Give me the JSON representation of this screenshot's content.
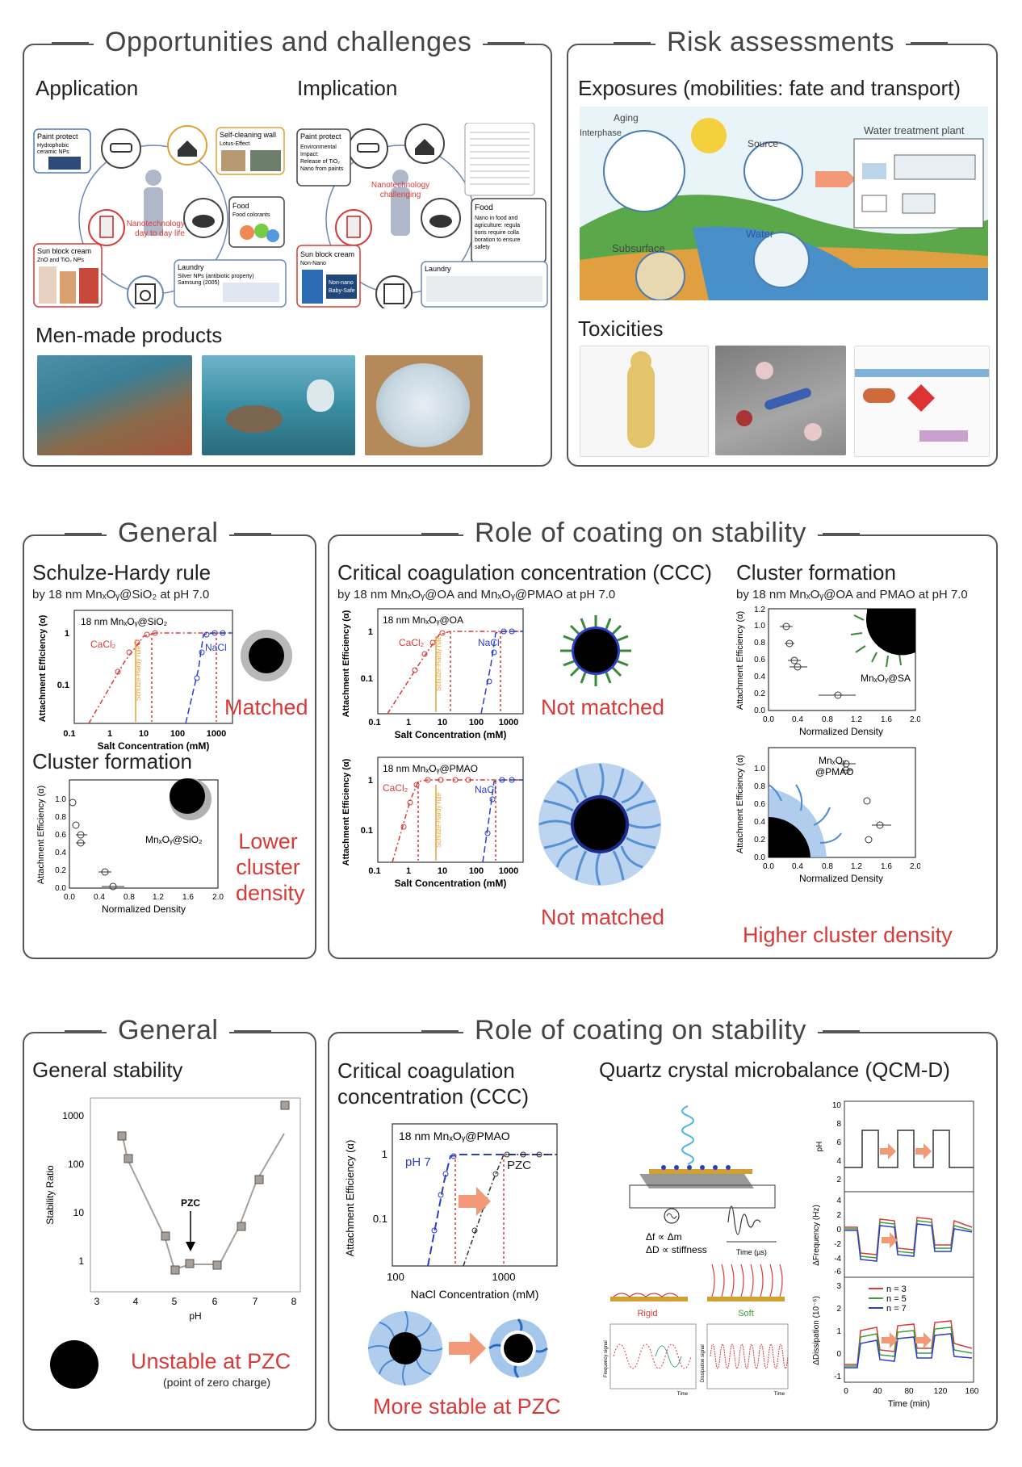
{
  "row1": {
    "left": {
      "title": "Opportunities and challenges",
      "application": {
        "heading": "Application",
        "center_text": [
          "Nanotechnology in",
          "day to day life"
        ],
        "items": [
          {
            "title": "Paint protect",
            "lines": [
              "Hydrophobic",
              "ceramic NPs"
            ]
          },
          {
            "title": "Self-cleaning wall",
            "lines": [
              "Lotus-Effect"
            ]
          },
          {
            "title": "Food",
            "lines": [
              "Food colorants"
            ]
          },
          {
            "title": "Sun block cream",
            "lines": [
              "ZnO and TiO₂ NPs"
            ]
          },
          {
            "title": "Laundry",
            "lines": [
              "Silver NPs (antibiotic property)",
              "Samsung (2005)"
            ]
          }
        ]
      },
      "implication": {
        "heading": "Implication",
        "center_text": [
          "Nanotechnology",
          "challenging"
        ],
        "items": [
          {
            "title": "Paint protect",
            "lines": [
              "Environmental",
              "Impact:",
              "Release of TiO₂",
              "Nano from paints"
            ]
          },
          {
            "title": "Food",
            "lines": [
              "Nano in food and",
              "agriculture: regula",
              "tions require colla",
              "boration to ensure",
              "safety"
            ]
          },
          {
            "title": "Sun block cream",
            "lines": [
              "Non-Nano"
            ]
          },
          {
            "title": "Laundry",
            "lines": []
          }
        ],
        "label_non_nano": [
          "Non-nano",
          "Baby-Safe"
        ]
      },
      "men_made_heading": "Men-made products"
    },
    "right": {
      "title": "Risk assessments",
      "exposures_heading": "Exposures (mobilities: fate and transport)",
      "labels": {
        "aging": "Aging",
        "interphase": "Interphase",
        "source": "Source",
        "water_treatment": "Water treatment plant",
        "water": "Water",
        "subsurface": "Subsurface"
      },
      "toxicities_heading": "Toxicities"
    }
  },
  "row2": {
    "left": {
      "title": "General",
      "schulze_heading": "Schulze-Hardy rule",
      "schulze_sub": "by 18 nm MnₓOᵧ@SiO₂ at pH 7.0",
      "plot1": {
        "label": "18 nm MnₓOᵧ@SiO₂",
        "cacl2": "CaCl₂",
        "nacl": "NaCl",
        "rule": "Schulze-Hardy rule",
        "xlabel": "Salt Concentration (mM)",
        "ylabel": "Attachment Efficiency (α)",
        "xticks": [
          "0.1",
          "1",
          "10",
          "100",
          "1000"
        ],
        "yticks": [
          "1",
          "0.1"
        ]
      },
      "matched": "Matched",
      "cluster_heading": "Cluster formation",
      "plot2": {
        "label": "MnₓOᵧ@SiO₂",
        "xlabel": "Normalized Density",
        "ylabel": "Attachment Efficiency (α)",
        "xticks": [
          "0.0",
          "0.4",
          "0.8",
          "1.2",
          "1.6",
          "2.0"
        ],
        "yticks": [
          "0.0",
          "0.2",
          "0.4",
          "0.6",
          "0.8",
          "1.0"
        ]
      },
      "lower": [
        "Lower",
        "cluster",
        "density"
      ]
    },
    "right": {
      "title": "Role of coating on stability",
      "ccc_heading": "Critical coagulation concentration (CCC)",
      "ccc_sub": "by 18 nm MnₓOᵧ@OA and MnₓOᵧ@PMAO at pH 7.0",
      "plotA": {
        "label": "18 nm MnₓOᵧ@OA",
        "cacl2": "CaCl₂",
        "nacl": "NaCl",
        "rule": "Schulze-Hardy rule",
        "xlabel": "Salt Concentration (mM)",
        "ylabel": "Attachment Efficiency (α)"
      },
      "plotB": {
        "label": "18 nm MnₓOᵧ@PMAO",
        "cacl2": "CaCl₂",
        "nacl": "NaCl",
        "rule": "Schulze-Hardy rule",
        "xlabel": "Salt Concentration (mM)",
        "ylabel": "Attachment Efficiency (α)"
      },
      "not_matched_1": "Not matched",
      "not_matched_2": "Not matched",
      "cluster_heading": "Cluster formation",
      "cluster_sub": "by 18 nm MnₓOᵧ@OA and PMAO at pH 7.0",
      "plotC": {
        "label": "MnₓOᵧ@SA",
        "xlabel": "Normalized Density",
        "ylabel": "Attachment Efficiency (α)",
        "xticks": [
          "0.0",
          "0.4",
          "0.8",
          "1.2",
          "1.6",
          "2.0"
        ],
        "yticks": [
          "0.0",
          "0.2",
          "0.4",
          "0.6",
          "0.8",
          "1.0",
          "1.2"
        ]
      },
      "plotD": {
        "label1": "MnₓOᵧ",
        "label2": "@PMAO",
        "xlabel": "Normalized Density",
        "ylabel": "Attachment Efficiency (α)",
        "xticks": [
          "0.0",
          "0.4",
          "0.8",
          "1.2",
          "1.6",
          "2.0"
        ],
        "yticks": [
          "0.0",
          "0.2",
          "0.4",
          "0.6",
          "0.8",
          "1.0"
        ]
      },
      "higher": "Higher cluster density"
    }
  },
  "row3": {
    "left": {
      "title": "General",
      "heading": "General stability",
      "plot": {
        "ylabel": "Stability Ratio",
        "xlabel": "pH",
        "pzc": "PZC",
        "xticks": [
          "3",
          "4",
          "5",
          "6",
          "7",
          "8"
        ],
        "yticks": [
          "1000",
          "100",
          "10",
          "1"
        ]
      },
      "unstable": "Unstable at PZC",
      "pzc_note": "(point of zero charge)"
    },
    "right": {
      "title": "Role of coating on stability",
      "ccc_heading": [
        "Critical coagulation",
        "concentration (CCC)"
      ],
      "plot": {
        "label": "18 nm MnₓOᵧ@PMAO",
        "ph7": "pH 7",
        "pzc": "PZC",
        "xlabel": "NaCl Concentration (mM)",
        "ylabel": "Attachment Efficiency (α)",
        "xticks": [
          "100",
          "1000"
        ],
        "yticks": [
          "1",
          "0.1"
        ]
      },
      "more_stable": "More stable at PZC",
      "qcm_heading": "Quartz crystal microbalance (QCM-D)",
      "qcm_labels": {
        "df": "Δf ∝ Δm",
        "dd": "ΔD ∝ stiffness",
        "time_us": "Time (µs)",
        "rigid": "Rigid",
        "soft": "Soft",
        "freq_signal": "Frequency signal",
        "diss_signal": "Dissipation signal",
        "time": "Time"
      },
      "qcm_plots": {
        "ph_label": "pH",
        "freq_label": "ΔFrequency (Hz)",
        "diss_label": "ΔDissipation (10⁻⁶)",
        "time_label": "Time (min)",
        "legend": [
          "n = 3",
          "n = 5",
          "n = 7"
        ],
        "xticks": [
          "0",
          "40",
          "80",
          "120",
          "160"
        ],
        "ph_ticks": [
          "10",
          "8",
          "6",
          "4",
          "2"
        ],
        "freq_ticks": [
          "4",
          "2",
          "0",
          "-2",
          "-4",
          "-6"
        ],
        "diss_ticks": [
          "3",
          "2",
          "1",
          "0",
          "-1"
        ]
      }
    }
  }
}
